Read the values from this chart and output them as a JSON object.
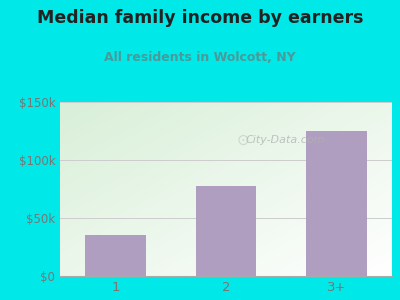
{
  "title": "Median family income by earners",
  "subtitle": "All residents in Wolcott, NY",
  "categories": [
    "1",
    "2",
    "3+"
  ],
  "values": [
    35000,
    78000,
    125000
  ],
  "bar_color": "#b09ec0",
  "background_color": "#00e8e8",
  "plot_bg_color_top_left": "#d8efd8",
  "plot_bg_color_bottom_right": "#ffffff",
  "title_color": "#222222",
  "subtitle_color": "#4a9a9a",
  "ytick_labels": [
    "$0",
    "$50k",
    "$100k",
    "$150k"
  ],
  "ytick_values": [
    0,
    50000,
    100000,
    150000
  ],
  "ylim": [
    0,
    150000
  ],
  "watermark": "City-Data.com",
  "title_fontsize": 12.5,
  "subtitle_fontsize": 9,
  "tick_color": "#777777",
  "grid_color": "#cccccc"
}
